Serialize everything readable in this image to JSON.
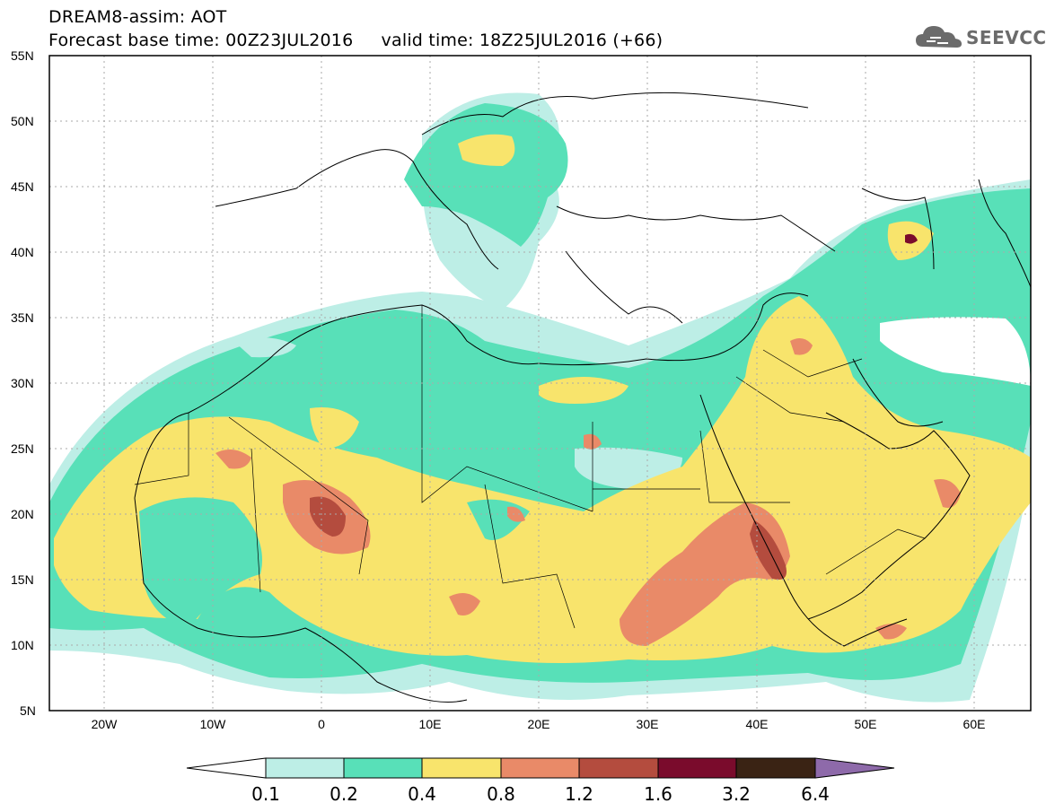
{
  "header": {
    "line1": "DREAM8-assim: AOT",
    "line2": "Forecast base time: 00Z23JUL2016     valid time: 18Z25JUL2016 (+66)"
  },
  "logo": {
    "text": "SEEVCCC",
    "icon": "cloud-icon"
  },
  "map": {
    "lat_range": [
      5,
      55
    ],
    "lon_range": [
      -25,
      65
    ],
    "lat_labels": [
      "55N",
      "50N",
      "45N",
      "40N",
      "35N",
      "30N",
      "25N",
      "20N",
      "15N",
      "10N",
      "5N"
    ],
    "lon_labels": [
      "20W",
      "10W",
      "0",
      "10E",
      "20E",
      "30E",
      "40E",
      "50E",
      "60E"
    ]
  },
  "colorbar": {
    "labels": [
      "0.1",
      "0.2",
      "0.4",
      "0.8",
      "1.2",
      "1.6",
      "3.2",
      "6.4"
    ],
    "colors": [
      "#ffffff",
      "#bdeee6",
      "#58e0b8",
      "#f8e46c",
      "#e98a68",
      "#b44c3e",
      "#7a0b2c",
      "#3a2314",
      "#8e6aaa"
    ]
  },
  "colors": {
    "c01": "#bdeee6",
    "c02": "#58e0b8",
    "c04": "#f8e46c",
    "c08": "#e98a68",
    "c12": "#b44c3e",
    "c16": "#7a0b2c"
  }
}
